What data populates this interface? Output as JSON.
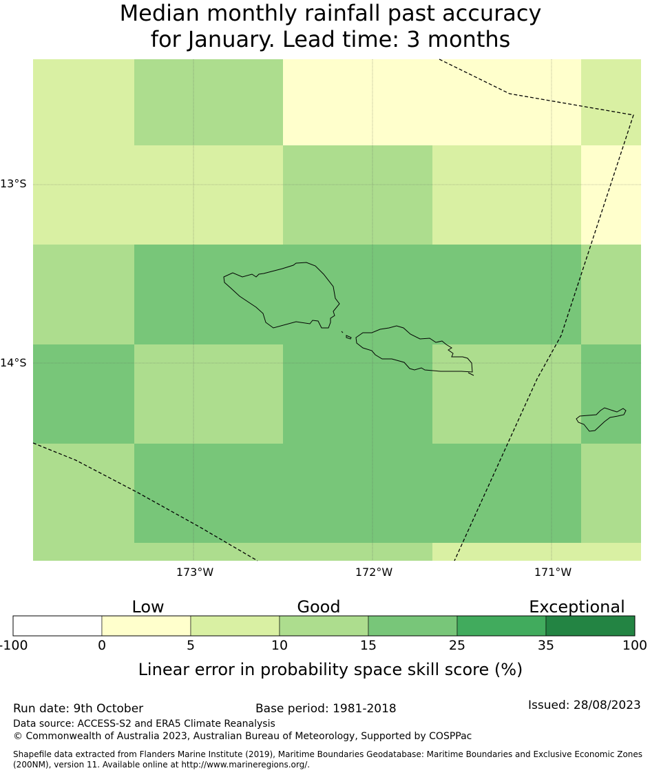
{
  "title": {
    "line1": "Median monthly rainfall past accuracy",
    "line2": "for January. Lead time: 3 months"
  },
  "map": {
    "lat_labels": [
      "13°S",
      "14°S"
    ],
    "lon_labels": [
      "173°W",
      "172°W",
      "171°W"
    ],
    "grid_lines": true,
    "features": [
      "eez-boundary-dashed",
      "island-coastlines"
    ]
  },
  "legend": {
    "categories": [
      "Low",
      "Good",
      "Exceptional"
    ],
    "ticks": [
      "-100",
      "0",
      "5",
      "10",
      "15",
      "25",
      "35",
      "100"
    ],
    "bins": [
      {
        "range": "-100 to 0",
        "color": "#ffffff"
      },
      {
        "range": "0 to 5",
        "color": "#ffffcc"
      },
      {
        "range": "5 to 10",
        "color": "#d9f0a3"
      },
      {
        "range": "10 to 15",
        "color": "#addd8e"
      },
      {
        "range": "15 to 25",
        "color": "#78c679"
      },
      {
        "range": "25 to 35",
        "color": "#41ab5d"
      },
      {
        "range": "35 to 100",
        "color": "#238443"
      }
    ],
    "title": "Linear error in probability space skill score (%)"
  },
  "footer": {
    "run_date": "Run date: 9th October",
    "base_period": "Base period: 1981-2018",
    "issued": "Issued: 28/08/2023",
    "data_source": "Data source: ACCESS-S2 and ERA5 Climate Reanalysis",
    "copyright": "© Commonwealth of Australia 2023, Australian Bureau of Meteorology, Supported by COSPPac",
    "shapefile": "Shapefile data extracted from Flanders Marine Institute (2019), Maritime Boundaries Geodatabase: Maritime Boundaries and Exclusive Economic Zones (200NM), version 11. Available online at http://www.marineregions.org/."
  }
}
